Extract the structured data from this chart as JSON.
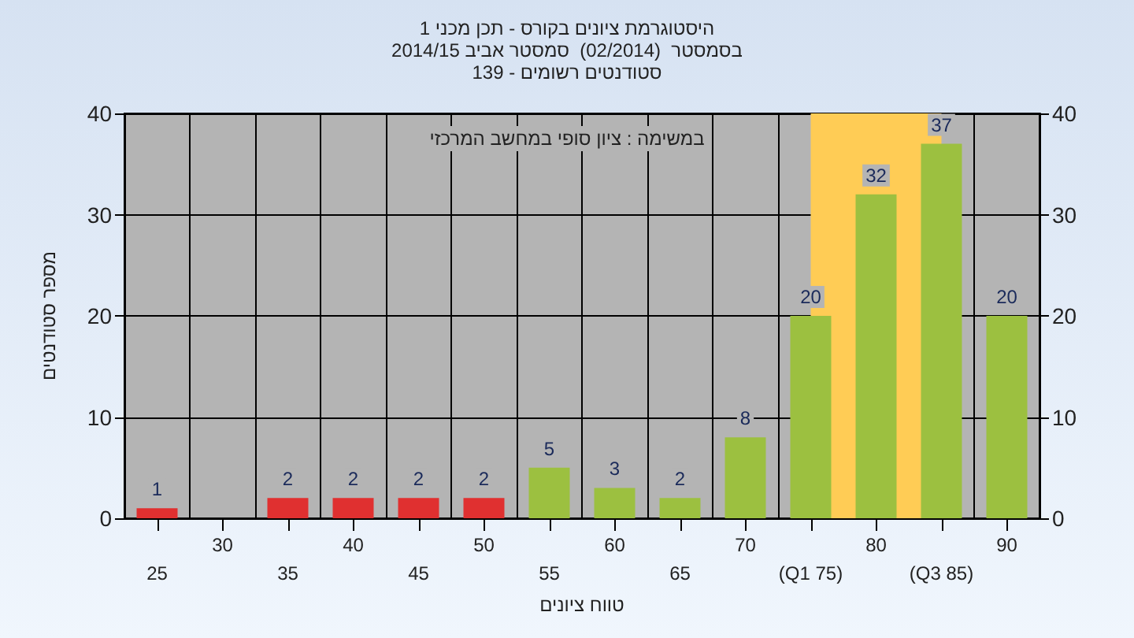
{
  "chart_data": {
    "type": "bar",
    "title": "היסטוגרמת ציונים בקורס - תכן מכני 1",
    "subtitle": "בסמסטר  (02/2014)  סמסטר אביב 2014/15\nסטודנטים רשומים - 139",
    "xlabel": "טווח ציונים",
    "ylabel": "מספר סטודנטים",
    "annotations": [
      "במשימה : ציון סופי במחשב המרכזי"
    ],
    "categories": [
      "25",
      "30",
      "35",
      "40",
      "45",
      "50",
      "55",
      "60",
      "65",
      "70",
      "(Q1 75)",
      "80",
      "(Q3 85)",
      "90"
    ],
    "values": [
      1,
      null,
      2,
      2,
      2,
      2,
      5,
      3,
      2,
      8,
      20,
      32,
      37,
      20
    ],
    "colors": [
      "#e03030",
      "#e03030",
      "#e03030",
      "#e03030",
      "#e03030",
      "#e03030",
      "#9cc040",
      "#9cc040",
      "#9cc040",
      "#9cc040",
      "#9cc040",
      "#9cc040",
      "#9cc040",
      "#9cc040"
    ],
    "bands": [
      {
        "axis": "x",
        "from": "(Q1 75)",
        "to": "(Q3 85)",
        "color": "#ffcc55"
      }
    ],
    "ylim": [
      0,
      40
    ],
    "yticks": [
      0,
      10,
      20,
      30,
      40
    ],
    "y2lim": [
      0,
      40
    ],
    "y2ticks": [
      0,
      10,
      20,
      30,
      40
    ],
    "data_labels": true,
    "grid": true
  }
}
